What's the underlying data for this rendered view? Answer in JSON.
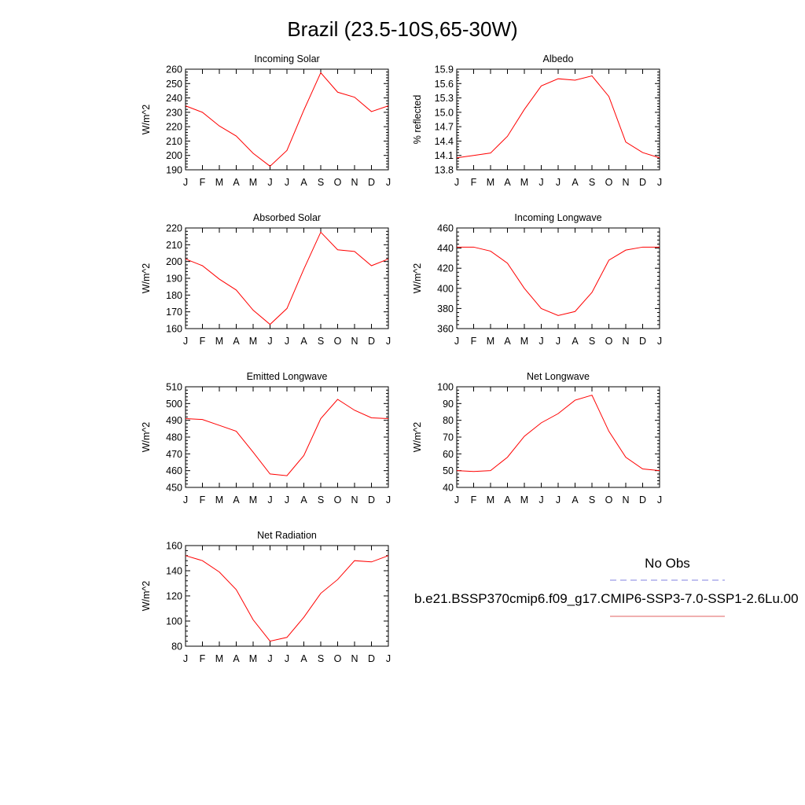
{
  "figure": {
    "title": "Brazil (23.5-10S,65-30W)"
  },
  "legend": {
    "entries": [
      {
        "label": "No Obs",
        "color": "#8080e0",
        "dash": "dashed"
      },
      {
        "label": "b.e21.BSSP370cmip6.f09_g17.CMIP6-SSP3-7.0-SSP1-2.6Lu.00",
        "color": "#e06060",
        "dash": "solid"
      }
    ]
  },
  "chart_data": [
    {
      "type": "line",
      "title": "Incoming Solar",
      "ylabel": "W/m^2",
      "xlabel": "",
      "categories": [
        "J",
        "F",
        "M",
        "A",
        "M",
        "J",
        "J",
        "A",
        "S",
        "O",
        "N",
        "D",
        "J"
      ],
      "ylim": [
        190,
        260
      ],
      "yticks": [
        "190",
        "200",
        "210",
        "220",
        "230",
        "240",
        "250",
        "260"
      ],
      "ytick_values": [
        190,
        200,
        210,
        220,
        230,
        240,
        250,
        260
      ],
      "series": [
        {
          "values": [
            234.5,
            230,
            220.5,
            213.5,
            201.5,
            192.5,
            203.5,
            231.5,
            257.5,
            244,
            240.5,
            230.5,
            234.5
          ],
          "color": "#ff0000"
        }
      ]
    },
    {
      "type": "line",
      "title": "Albedo",
      "ylabel": "% reflected",
      "xlabel": "",
      "categories": [
        "J",
        "F",
        "M",
        "A",
        "M",
        "J",
        "J",
        "A",
        "S",
        "O",
        "N",
        "D",
        "J"
      ],
      "ylim": [
        13.8,
        15.9
      ],
      "yticks": [
        "13.8",
        "14.1",
        "14.4",
        "14.7",
        "15.0",
        "15.3",
        "15.6",
        "15.9"
      ],
      "ytick_values": [
        13.8,
        14.1,
        14.4,
        14.7,
        15.0,
        15.3,
        15.6,
        15.9
      ],
      "series": [
        {
          "values": [
            14.05,
            14.1,
            14.15,
            14.5,
            15.06,
            15.55,
            15.7,
            15.67,
            15.76,
            15.33,
            14.38,
            14.16,
            14.05
          ],
          "color": "#ff0000"
        }
      ]
    },
    {
      "type": "line",
      "title": "Absorbed Solar",
      "ylabel": "W/m^2",
      "xlabel": "",
      "categories": [
        "J",
        "F",
        "M",
        "A",
        "M",
        "J",
        "J",
        "A",
        "S",
        "O",
        "N",
        "D",
        "J"
      ],
      "ylim": [
        160,
        220
      ],
      "yticks": [
        "160",
        "170",
        "180",
        "190",
        "200",
        "210",
        "220"
      ],
      "ytick_values": [
        160,
        170,
        180,
        190,
        200,
        210,
        220
      ],
      "series": [
        {
          "values": [
            201.5,
            197.5,
            189.5,
            183,
            171,
            162.5,
            172,
            195.5,
            217.5,
            207,
            206,
            197.5,
            201.5
          ],
          "color": "#ff0000"
        }
      ]
    },
    {
      "type": "line",
      "title": "Incoming Longwave",
      "ylabel": "W/m^2",
      "xlabel": "",
      "categories": [
        "J",
        "F",
        "M",
        "A",
        "M",
        "J",
        "J",
        "A",
        "S",
        "O",
        "N",
        "D",
        "J"
      ],
      "ylim": [
        360,
        460
      ],
      "yticks": [
        "360",
        "380",
        "400",
        "420",
        "440",
        "460"
      ],
      "ytick_values": [
        360,
        380,
        400,
        420,
        440,
        460
      ],
      "series": [
        {
          "values": [
            441,
            441,
            437,
            425,
            400,
            380,
            373,
            377,
            396,
            428,
            438,
            441,
            441
          ],
          "color": "#ff0000"
        }
      ]
    },
    {
      "type": "line",
      "title": "Emitted Longwave",
      "ylabel": "W/m^2",
      "xlabel": "",
      "categories": [
        "J",
        "F",
        "M",
        "A",
        "M",
        "J",
        "J",
        "A",
        "S",
        "O",
        "N",
        "D",
        "J"
      ],
      "ylim": [
        450,
        510
      ],
      "yticks": [
        "450",
        "460",
        "470",
        "480",
        "490",
        "500",
        "510"
      ],
      "ytick_values": [
        450,
        460,
        470,
        480,
        490,
        500,
        510
      ],
      "series": [
        {
          "values": [
            491,
            490.5,
            487,
            483.5,
            471,
            458,
            457,
            469,
            491,
            502.5,
            496,
            491.5,
            491
          ],
          "color": "#ff0000"
        }
      ]
    },
    {
      "type": "line",
      "title": "Net Longwave",
      "ylabel": "W/m^2",
      "xlabel": "",
      "categories": [
        "J",
        "F",
        "M",
        "A",
        "M",
        "J",
        "J",
        "A",
        "S",
        "O",
        "N",
        "D",
        "J"
      ],
      "ylim": [
        40,
        100
      ],
      "yticks": [
        "40",
        "50",
        "60",
        "70",
        "80",
        "90",
        "100"
      ],
      "ytick_values": [
        40,
        50,
        60,
        70,
        80,
        90,
        100
      ],
      "series": [
        {
          "values": [
            50,
            49.5,
            50,
            58,
            70.5,
            78.5,
            84,
            92,
            95,
            73.5,
            58,
            51,
            50
          ],
          "color": "#ff0000"
        }
      ]
    },
    {
      "type": "line",
      "title": "Net Radiation",
      "ylabel": "W/m^2",
      "xlabel": "",
      "categories": [
        "J",
        "F",
        "M",
        "A",
        "M",
        "J",
        "J",
        "A",
        "S",
        "O",
        "N",
        "D",
        "J"
      ],
      "ylim": [
        80,
        160
      ],
      "yticks": [
        "80",
        "100",
        "120",
        "140",
        "160"
      ],
      "ytick_values": [
        80,
        100,
        120,
        140,
        160
      ],
      "series": [
        {
          "values": [
            152,
            148,
            139,
            125,
            101,
            84,
            87,
            103,
            122,
            133,
            148,
            147,
            152
          ],
          "color": "#ff0000"
        }
      ]
    }
  ]
}
